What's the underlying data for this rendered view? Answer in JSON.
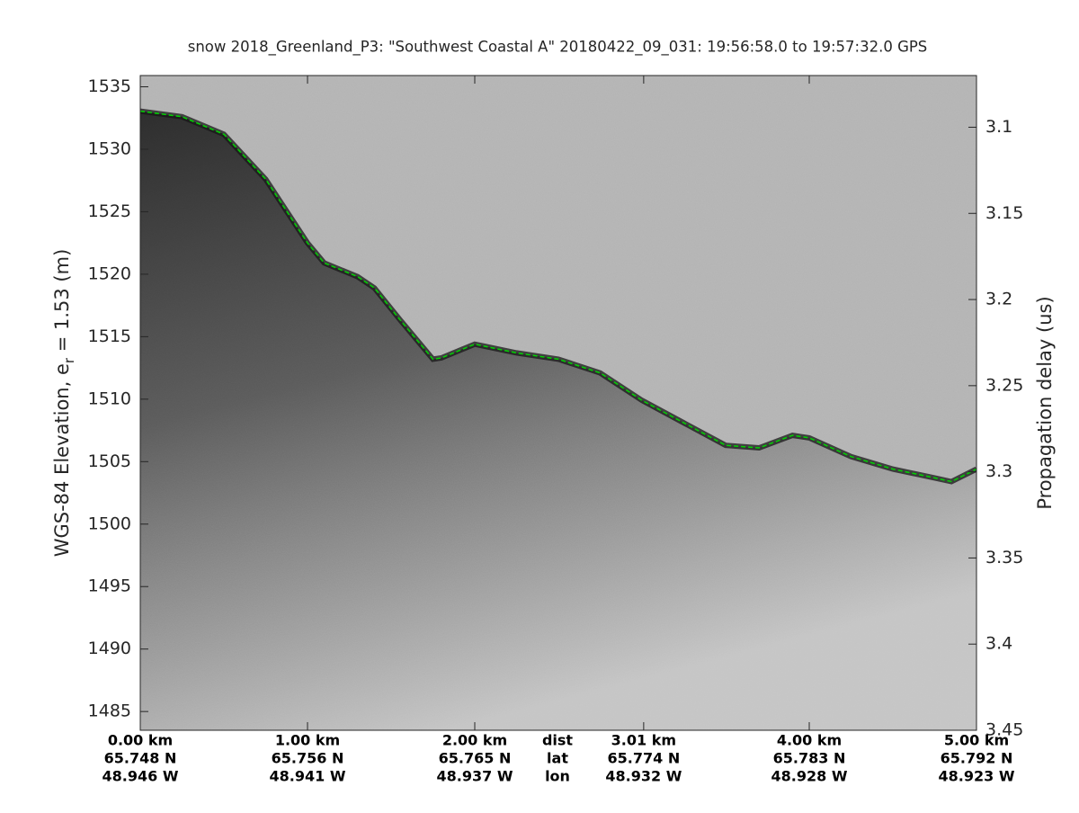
{
  "chart_data": {
    "type": "echogram",
    "title": "snow 2018_Greenland_P3: \"Southwest Coastal A\"  20180422_09_031: 19:56:58.0 to 19:57:32.0 GPS",
    "ylabel": {
      "main": "WGS-84 Elevation, e",
      "subscript": "r",
      "suffix": " = 1.53 (m)"
    },
    "y2label": "Propagation delay (us)",
    "row_labels": [
      "dist",
      "lat",
      "lon"
    ],
    "xlim": [
      0,
      5.0
    ],
    "xticks": [
      {
        "value": 0,
        "label": "0.00 km",
        "lat": "65.748 N",
        "lon": "48.946 W"
      },
      {
        "value": 1.0,
        "label": "1.00 km",
        "lat": "65.756 N",
        "lon": "48.941 W"
      },
      {
        "value": 2.0,
        "label": "2.00 km",
        "lat": "65.765 N",
        "lon": "48.937 W"
      },
      {
        "value": 3.01,
        "label": "3.01 km",
        "lat": "65.774 N",
        "lon": "48.932 W"
      },
      {
        "value": 4.0,
        "label": "4.00 km",
        "lat": "65.783 N",
        "lon": "48.928 W"
      },
      {
        "value": 5.0,
        "label": "5.00 km",
        "lat": "65.792 N",
        "lon": "48.923 W"
      }
    ],
    "ylim": [
      1483.5,
      1535.9
    ],
    "yticks": [
      1485,
      1490,
      1495,
      1500,
      1505,
      1510,
      1515,
      1520,
      1525,
      1530,
      1535
    ],
    "y2lim": [
      3.45,
      3.07
    ],
    "y2ticks": [
      3.1,
      3.15,
      3.2,
      3.25,
      3.3,
      3.35,
      3.4,
      3.45
    ],
    "x": [
      0,
      0.25,
      0.5,
      0.75,
      1.0,
      1.1,
      1.3,
      1.4,
      1.55,
      1.75,
      1.8,
      2.0,
      2.25,
      2.5,
      2.75,
      3.0,
      3.25,
      3.5,
      3.7,
      3.9,
      4.0,
      4.25,
      4.5,
      4.75,
      4.85,
      5.0
    ],
    "series": [
      {
        "color": "#00d000",
        "values": [
          1533.05,
          1532.6,
          1531.2,
          1527.6,
          1522.5,
          1520.9,
          1519.8,
          1518.9,
          1516.4,
          1513.2,
          1513.3,
          1514.4,
          1513.7,
          1513.2,
          1512.1,
          1509.9,
          1508.1,
          1506.3,
          1506.1,
          1507.1,
          1506.9,
          1505.4,
          1504.4,
          1503.7,
          1503.4,
          1504.4
        ]
      }
    ]
  }
}
